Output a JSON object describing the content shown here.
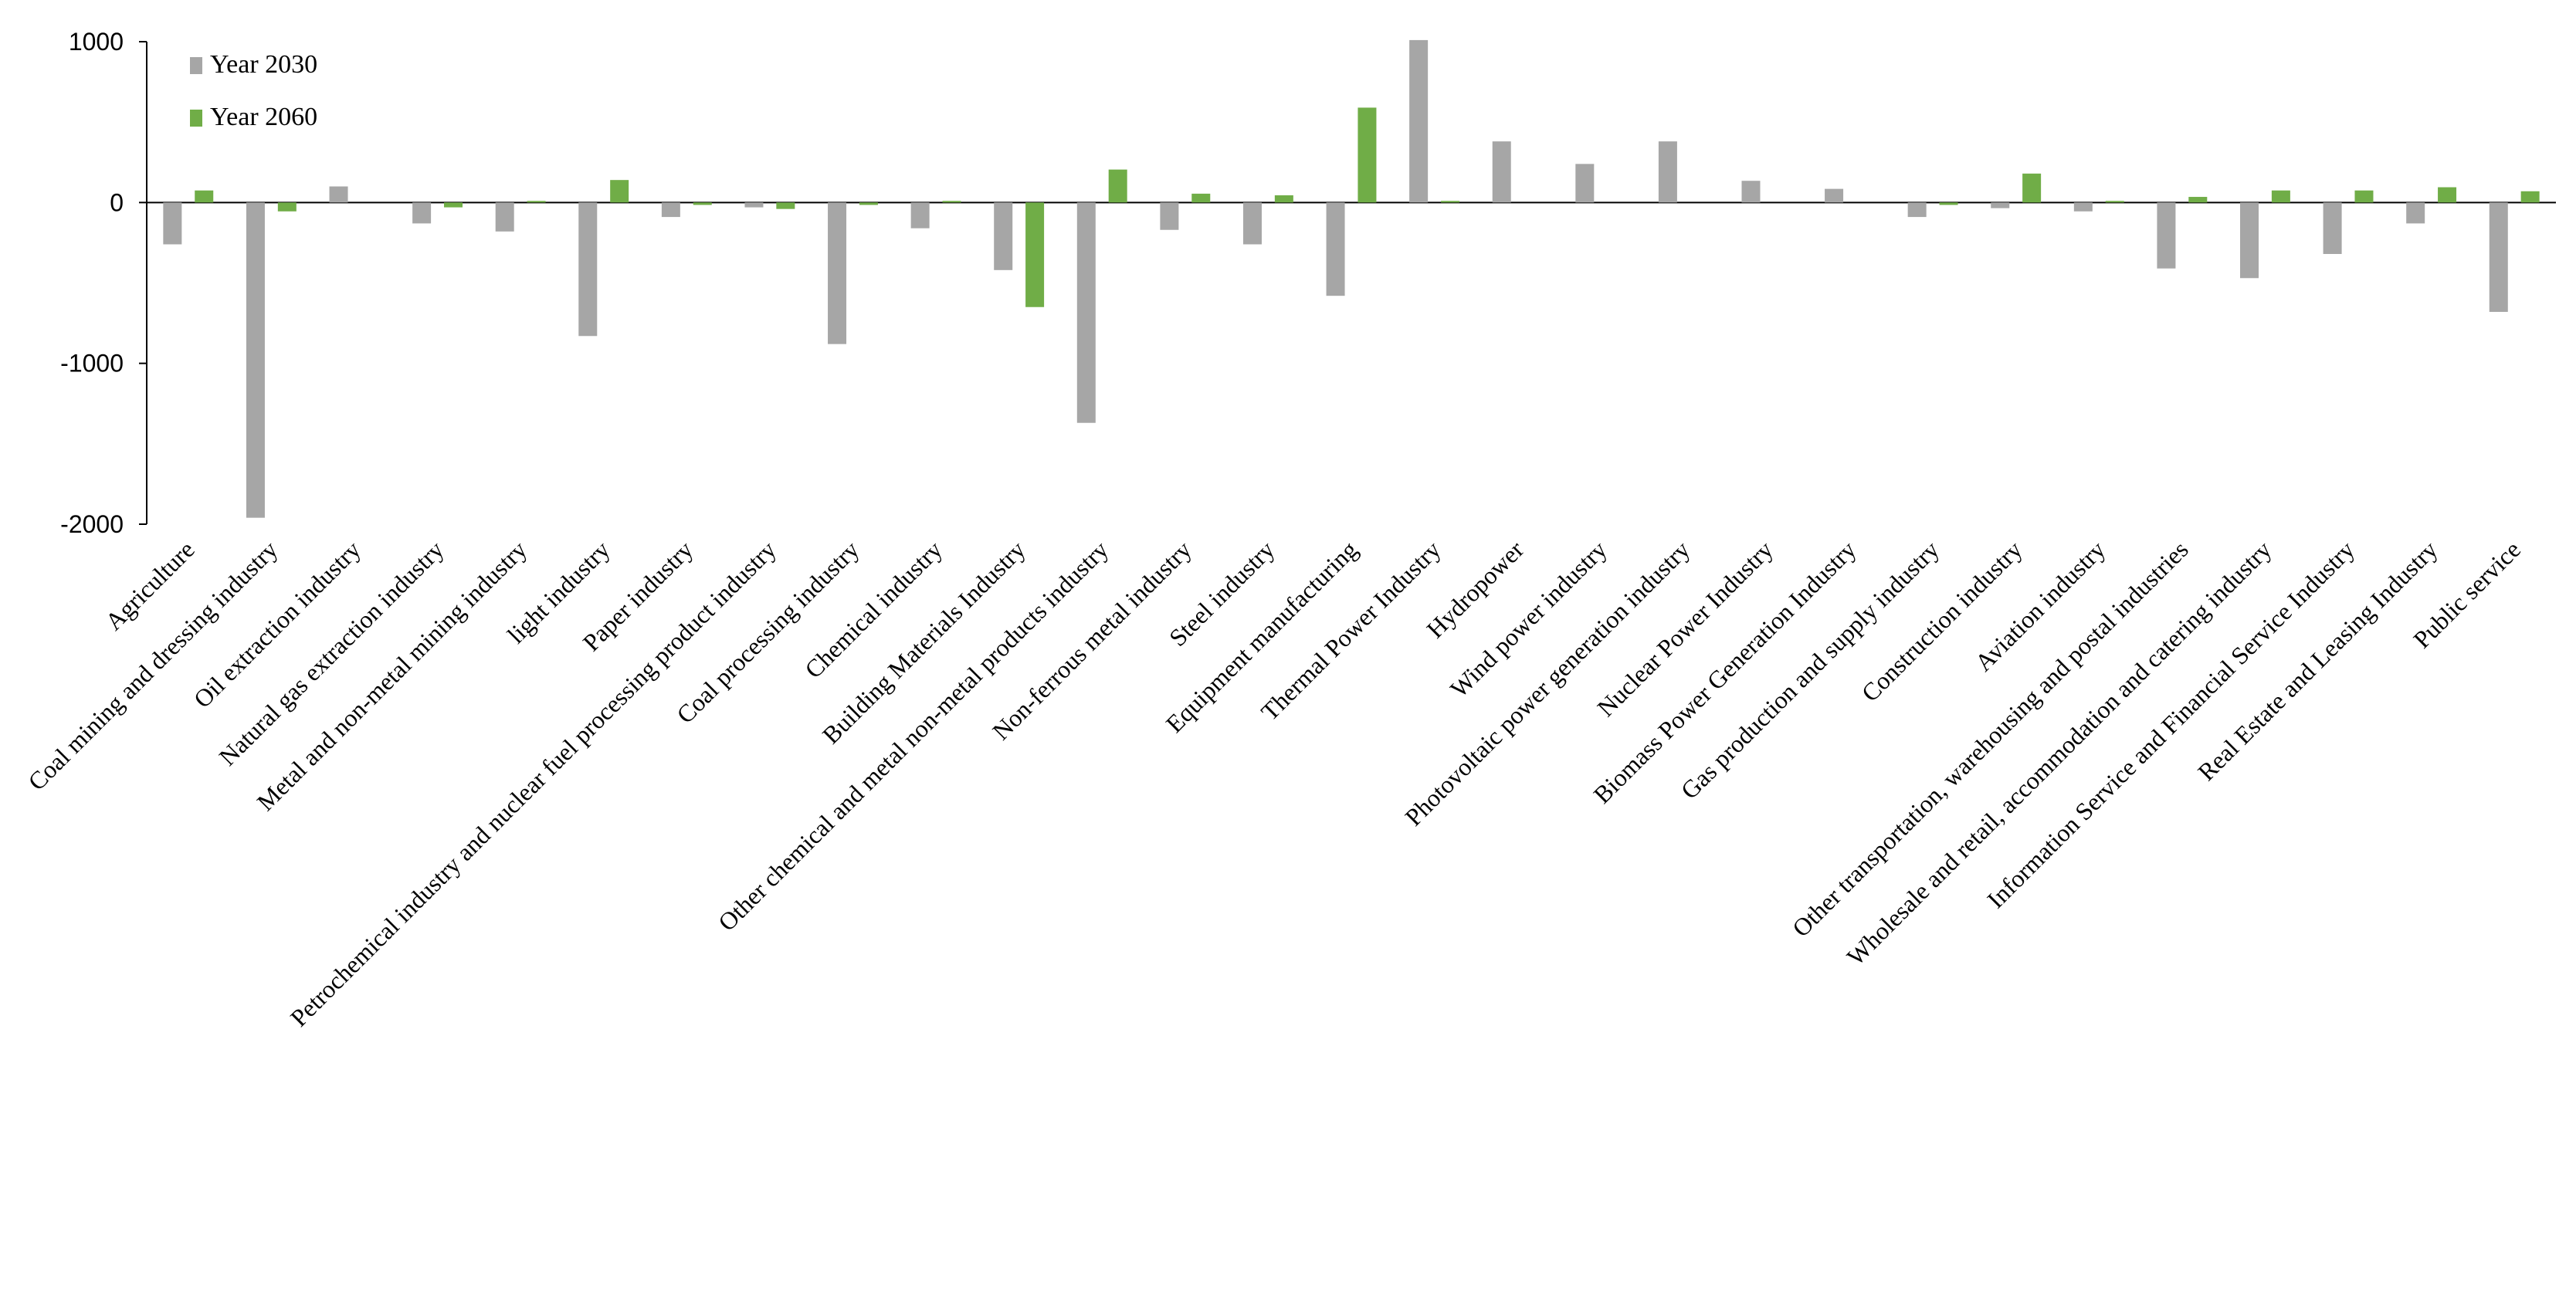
{
  "chart_data": {
    "type": "bar",
    "title": "",
    "xlabel": "",
    "ylabel": "",
    "ylim": [
      -2000,
      1000
    ],
    "yticks": [
      1000,
      0,
      -1000,
      -2000
    ],
    "grid": false,
    "legend_position": "top-left",
    "colors": {
      "Year 2030": "#a6a6a6",
      "Year 2060": "#70ad47"
    },
    "categories": [
      "Agriculture",
      "Coal mining and dressing industry",
      "Oil extraction industry",
      "Natural gas extraction industry",
      "Metal and non-metal mining industry",
      "light industry",
      "Paper industry",
      "Petrochemical industry and nuclear fuel processing product industry",
      "Coal processing industry",
      "Chemical industry",
      "Building Materials Industry",
      "Other chemical and metal non-metal products industry",
      "Non-ferrous metal industry",
      "Steel industry",
      "Equipment manufacturing",
      "Thermal Power Industry",
      "Hydropower",
      "Wind power industry",
      "Photovoltaic power generation industry",
      "Nuclear Power Industry",
      "Biomass Power Generation Industry",
      "Gas production and supply industry",
      "Construction industry",
      "Aviation industry",
      "Other transportation, warehousing and postal industries",
      "Wholesale and retail, accommodation and catering industry",
      "Information Service and Financial Service Industry",
      "Real Estate and Leasing Industry",
      "Public service"
    ],
    "series": [
      {
        "name": "Year 2030",
        "values": [
          -260,
          -1960,
          100,
          -130,
          -180,
          -830,
          -90,
          -30,
          -880,
          -160,
          -420,
          -1370,
          -170,
          -260,
          -580,
          1010,
          380,
          240,
          380,
          135,
          85,
          -90,
          -35,
          -55,
          -410,
          -470,
          -320,
          -130,
          -680
        ]
      },
      {
        "name": "Year 2060",
        "values": [
          75,
          -55,
          0,
          -30,
          10,
          140,
          -15,
          -40,
          -15,
          10,
          -650,
          205,
          55,
          45,
          590,
          10,
          0,
          0,
          0,
          0,
          0,
          -15,
          180,
          10,
          35,
          75,
          75,
          95,
          70
        ]
      }
    ]
  }
}
